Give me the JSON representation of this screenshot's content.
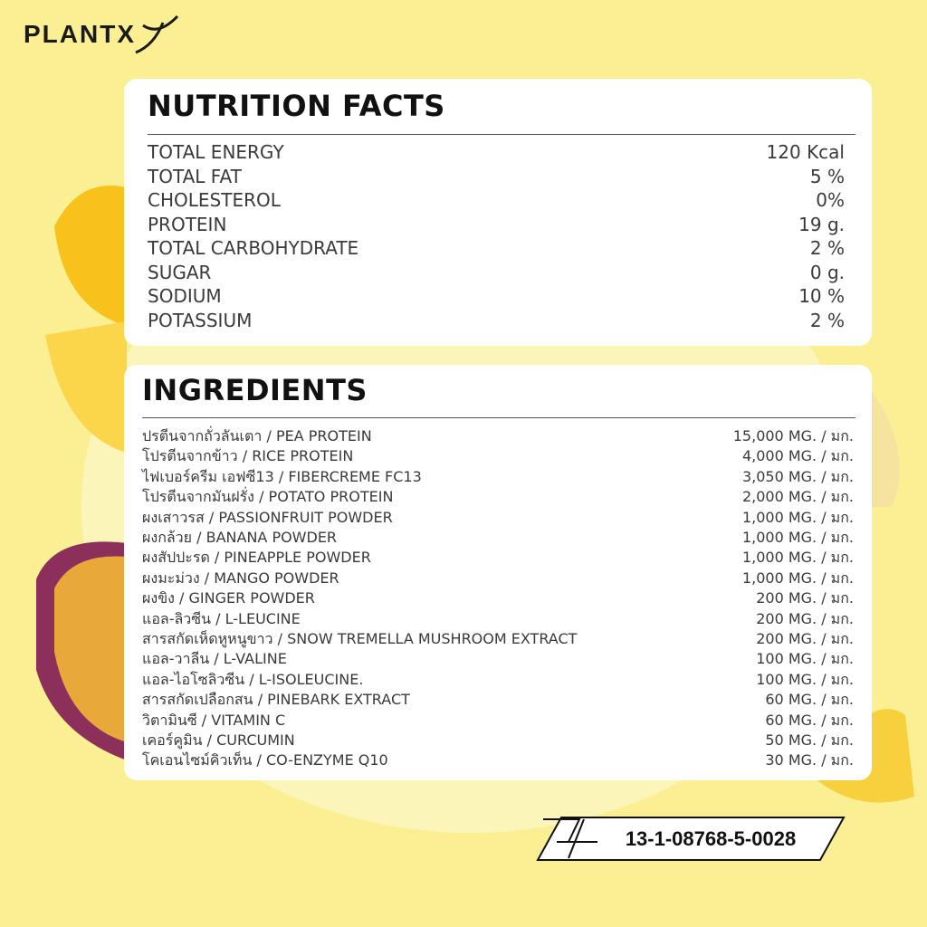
{
  "brand": "PLANTX",
  "nutrition": {
    "title": "NUTRITION FACTS",
    "rows": [
      [
        "TOTAL ENERGY",
        "120 Kcal"
      ],
      [
        "TOTAL FAT",
        "5 %"
      ],
      [
        "CHOLESTEROL",
        "0%"
      ],
      [
        "PROTEIN",
        "19 g."
      ],
      [
        "TOTAL CARBOHYDRATE",
        "2 %"
      ],
      [
        "SUGAR",
        "0 g."
      ],
      [
        "SODIUM",
        "10 %"
      ],
      [
        "POTASSIUM",
        "2 %"
      ]
    ]
  },
  "ingredients": {
    "title": "INGREDIENTS",
    "rows": [
      [
        "ปรตีนจากถั่วลันเตา / PEA PROTEIN",
        "15,000 MG. / มก."
      ],
      [
        "โปรตีนจากข้าว / RICE PROTEIN",
        "4,000 MG. / มก."
      ],
      [
        "ไฟเบอร์ครีม เอฟซี13 / FIBERCREME FC13",
        "3,050 MG. / มก."
      ],
      [
        "โปรตีนจากมันฝรั่ง / POTATO PROTEIN",
        "2,000 MG. / มก."
      ],
      [
        "ผงเสาวรส / PASSIONFRUIT POWDER",
        "1,000 MG. / มก."
      ],
      [
        "ผงกล้วย / BANANA POWDER",
        "1,000 MG. / มก."
      ],
      [
        "ผงสัปปะรด / PINEAPPLE POWDER",
        "1,000 MG. / มก."
      ],
      [
        "ผงมะม่วง / MANGO POWDER",
        "1,000 MG. / มก."
      ],
      [
        "ผงขิง / GINGER POWDER",
        "200 MG. / มก."
      ],
      [
        "แอล-ลิวซีน / L-LEUCINE",
        "200 MG. / มก."
      ],
      [
        "สารสกัดเห็ดหูหนูขาว / SNOW TREMELLA MUSHROOM EXTRACT",
        "200 MG. / มก."
      ],
      [
        "แอล-วาลีน / L-VALINE",
        "100 MG. / มก."
      ],
      [
        "แอล-ไอโซลิวซีน / L-ISOLEUCINE.",
        "100 MG. / มก."
      ],
      [
        "สารสกัดเปลือกสน / PINEBARK EXTRACT",
        "60 MG. / มก."
      ],
      [
        "วิตามินซี / VITAMIN C",
        "60 MG. / มก."
      ],
      [
        "เคอร์คูมิน / CURCUMIN",
        "50 MG. / มก."
      ],
      [
        "โคเอนไซม์คิวเท็น / CO-ENZYME Q10",
        "30 MG. / มก."
      ]
    ]
  },
  "registration": "13-1-08768-5-0028"
}
